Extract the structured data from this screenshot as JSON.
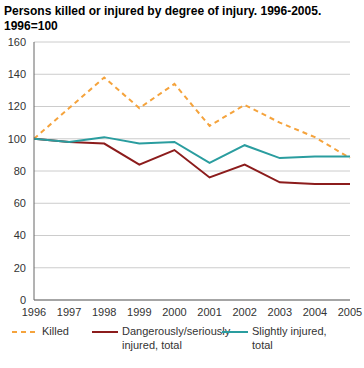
{
  "chart_data": {
    "type": "line",
    "title": "Persons killed or injured by degree of injury. 1996-2005.",
    "subtitle": "1996=100",
    "categories": [
      "1996",
      "1997",
      "1998",
      "1999",
      "2000",
      "2001",
      "2002",
      "2003",
      "2004",
      "2005"
    ],
    "series": [
      {
        "name": "Killed",
        "color": "#f5a33c",
        "line_style": "dashed",
        "values": [
          100,
          119,
          138,
          119,
          134,
          108,
          121,
          110,
          101,
          88
        ]
      },
      {
        "name": "Dangerously/seriously injured, total",
        "color": "#8c1c1c",
        "line_style": "solid",
        "values": [
          100,
          98,
          97,
          84,
          93,
          76,
          84,
          73,
          72,
          72
        ]
      },
      {
        "name": "Slightly injured, total",
        "color": "#2a9d9f",
        "line_style": "solid",
        "values": [
          100,
          98,
          101,
          97,
          98,
          85,
          96,
          88,
          89,
          89
        ]
      }
    ],
    "ylim": [
      0,
      160
    ],
    "yticks": [
      0,
      20,
      40,
      60,
      80,
      100,
      120,
      140,
      160
    ],
    "grid": true,
    "legend": "bottom"
  }
}
